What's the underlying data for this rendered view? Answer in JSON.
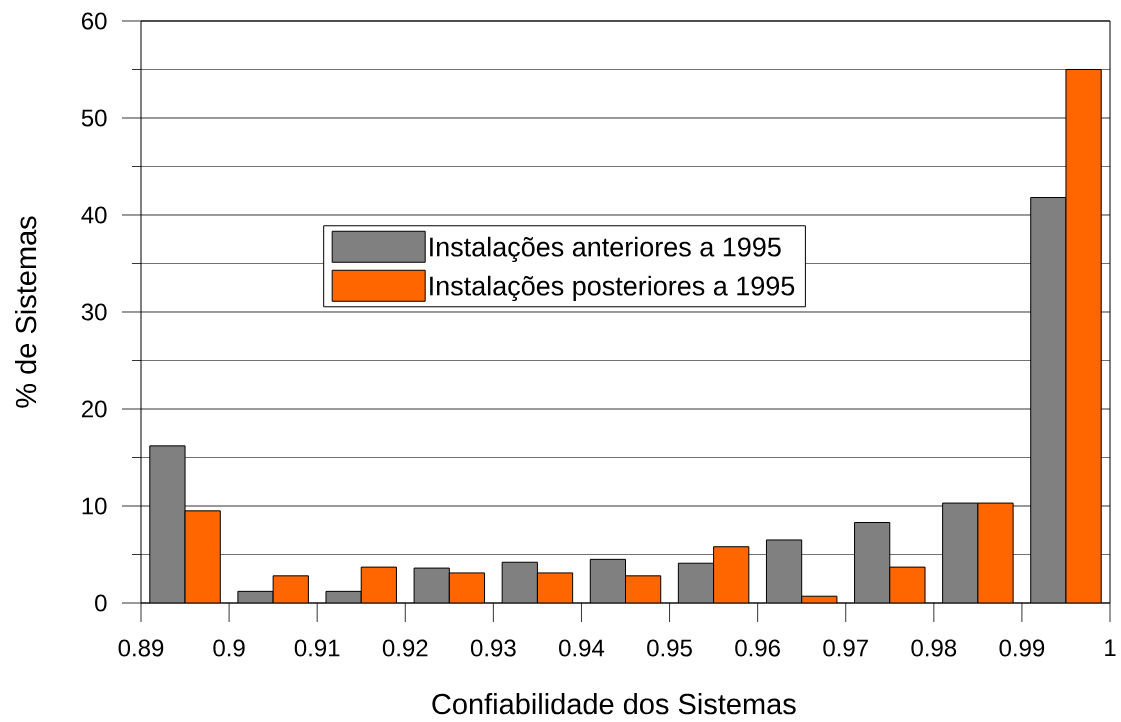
{
  "chart_data": {
    "type": "histogram",
    "xlabel": "Confiabilidade dos Sistemas",
    "ylabel": "% de Sistemas",
    "bins": [
      0.89,
      0.9,
      0.91,
      0.92,
      0.93,
      0.94,
      0.95,
      0.96,
      0.97,
      0.98,
      0.99,
      1
    ],
    "series": [
      {
        "name": "Instalações anteriores a 1995",
        "color": "#808080",
        "values": [
          16.2,
          1.2,
          1.2,
          3.6,
          4.2,
          4.5,
          4.1,
          6.5,
          8.3,
          10.3,
          41.8
        ]
      },
      {
        "name": "Instalações posteriores a 1995",
        "color": "#ff6600",
        "values": [
          9.5,
          2.8,
          3.7,
          3.1,
          3.1,
          2.8,
          5.8,
          0.7,
          3.7,
          10.3,
          55
        ]
      }
    ],
    "xlim": [
      0.89,
      1
    ],
    "ylim": [
      0,
      60
    ],
    "xticks": [
      0.89,
      0.9,
      0.91,
      0.92,
      0.93,
      0.94,
      0.95,
      0.96,
      0.97,
      0.98,
      0.99,
      1
    ],
    "yticks": [
      0,
      {
        "value": 5,
        "label": null
      },
      10,
      {
        "value": 15,
        "label": null
      },
      20,
      {
        "value": 25,
        "label": null
      },
      30,
      {
        "value": 35,
        "label": null
      },
      40,
      {
        "value": 45,
        "label": null
      },
      50,
      {
        "value": 55,
        "label": null
      },
      60
    ],
    "grid": "y",
    "legend": "center"
  }
}
